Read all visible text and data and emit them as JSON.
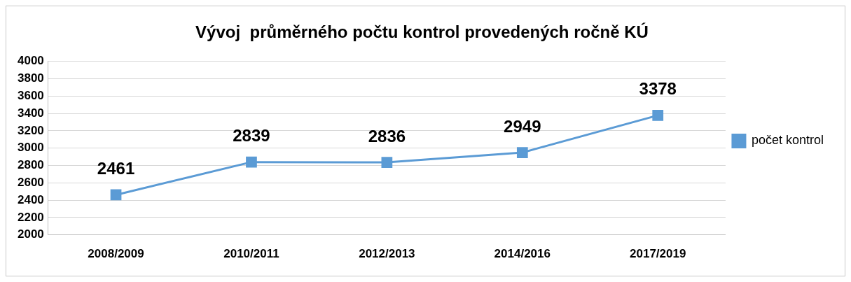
{
  "chart_data": {
    "type": "line",
    "title": "Vývoj  průměrného počtu kontrol provedených ročně KÚ",
    "categories": [
      "2008/2009",
      "2010/2011",
      "2012/2013",
      "2014/2016",
      "2017/2019"
    ],
    "series": [
      {
        "name": "počet kontrol",
        "color": "#5b9bd5",
        "values": [
          2461,
          2839,
          2836,
          2949,
          3378
        ]
      }
    ],
    "ylim": [
      2000,
      4000
    ],
    "yticks": [
      2000,
      2200,
      2400,
      2600,
      2800,
      3000,
      3200,
      3400,
      3600,
      3800,
      4000
    ],
    "grid": "y",
    "legend": "right",
    "marker": "square",
    "line_style": "solid",
    "data_labels": true
  }
}
